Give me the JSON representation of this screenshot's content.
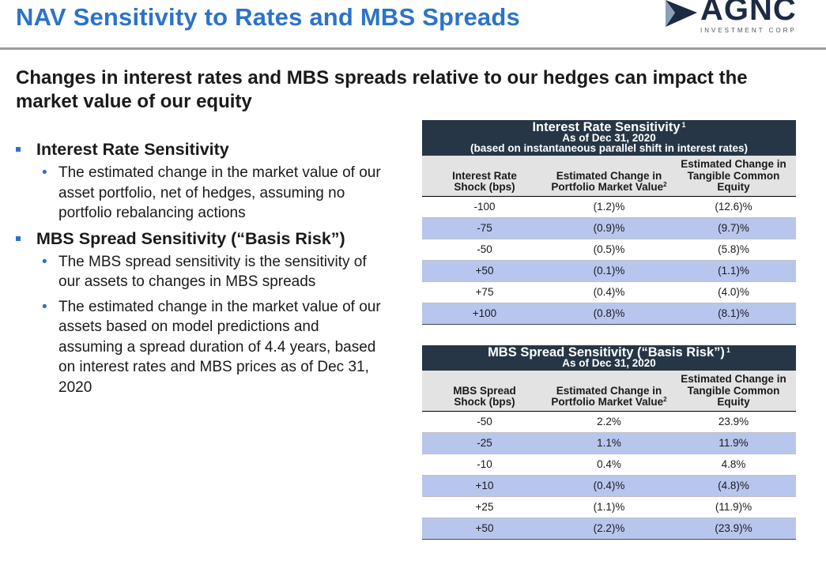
{
  "header": {
    "title": "NAV Sensitivity to Rates and MBS Spreads",
    "logo_word": "AGNC",
    "logo_sub": "INVESTMENT CORP"
  },
  "subtitle": "Changes in interest rates and MBS spreads relative to our hedges can impact the market value of our equity",
  "bullets": [
    {
      "heading": "Interest Rate Sensitivity",
      "subs": [
        "The estimated change in the market value of our asset portfolio, net of hedges, assuming no portfolio rebalancing actions"
      ]
    },
    {
      "heading": "MBS Spread Sensitivity (“Basis Risk”)",
      "subs": [
        "The MBS spread sensitivity is the sensitivity of our assets to changes in MBS spreads",
        "The estimated change in the market value of our assets based on model predictions and assuming a spread duration of 4.4 years, based on interest rates and MBS prices as of Dec 31, 2020"
      ]
    }
  ],
  "colors": {
    "title_blue": "#2b73c9",
    "table_header": "#263646",
    "row_shade": "#b8c6ee",
    "colhead_bg": "#e3e3e3"
  },
  "rate_table": {
    "title": "Interest Rate Sensitivity",
    "footnote": "1",
    "asof": "As of Dec 31, 2020",
    "note": "(based on instantaneous parallel shift in interest rates)",
    "columns": [
      "Interest Rate Shock (bps)",
      "Estimated Change in Portfolio Market Value",
      "Estimated Change in Tangible Common Equity"
    ],
    "col2_footnote": "2",
    "rows": [
      [
        "-100",
        "(1.2)%",
        "(12.6)%"
      ],
      [
        "-75",
        "(0.9)%",
        "(9.7)%"
      ],
      [
        "-50",
        "(0.5)%",
        "(5.8)%"
      ],
      [
        "+50",
        "(0.1)%",
        "(1.1)%"
      ],
      [
        "+75",
        "(0.4)%",
        "(4.0)%"
      ],
      [
        "+100",
        "(0.8)%",
        "(8.1)%"
      ]
    ]
  },
  "spread_table": {
    "title": "MBS Spread Sensitivity (“Basis Risk”)",
    "footnote": "1",
    "asof": "As of Dec 31, 2020",
    "columns": [
      "MBS Spread Shock (bps)",
      "Estimated Change in Portfolio Market Value",
      "Estimated Change in Tangible Common Equity"
    ],
    "col2_footnote": "2",
    "rows": [
      [
        "-50",
        "2.2%",
        "23.9%"
      ],
      [
        "-25",
        "1.1%",
        "11.9%"
      ],
      [
        "-10",
        "0.4%",
        "4.8%"
      ],
      [
        "+10",
        "(0.4)%",
        "(4.8)%"
      ],
      [
        "+25",
        "(1.1)%",
        "(11.9)%"
      ],
      [
        "+50",
        "(2.2)%",
        "(23.9)%"
      ]
    ]
  }
}
